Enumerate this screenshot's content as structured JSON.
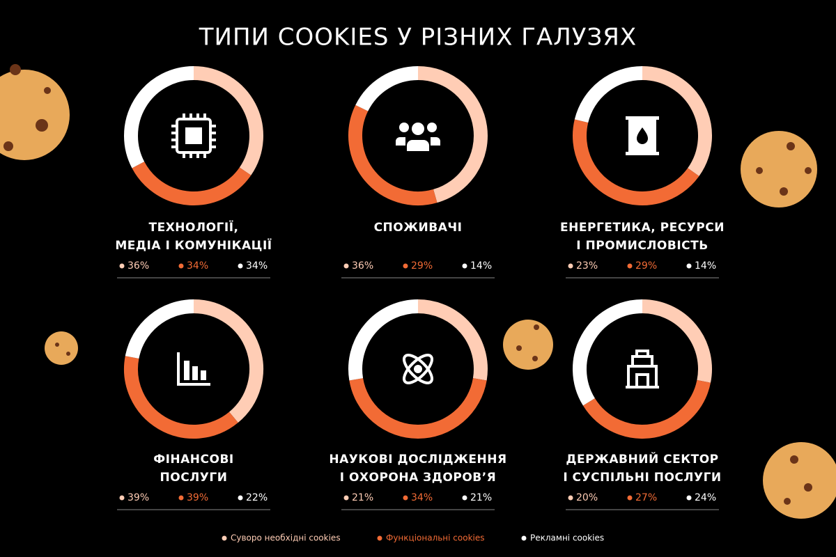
{
  "title": "ТИПИ COOKIES У РІЗНИХ ГАЛУЗЯХ",
  "legend": {
    "names": [
      "Суворо необхідні cookies",
      "Функціональні cookies",
      "Рекламні cookies"
    ],
    "colors": [
      "#ffcdb5",
      "#f26b35",
      "#ffffff"
    ]
  },
  "chart_data": [
    {
      "type": "donut",
      "title_lines": [
        "ТЕХНОЛОГІЇ,",
        "МЕДІА І КОМУНІКАЦІЇ"
      ],
      "values": [
        36,
        34,
        34
      ],
      "value_labels": [
        "36%",
        "34%",
        "34%"
      ]
    },
    {
      "type": "donut",
      "title_lines": [
        "СПОЖИВАЧІ"
      ],
      "values": [
        36,
        29,
        14
      ],
      "value_labels": [
        "36%",
        "29%",
        "14%"
      ]
    },
    {
      "type": "donut",
      "title_lines": [
        "ЕНЕРГЕТИКА, РЕСУРСИ",
        "І ПРОМИСЛОВІСТЬ"
      ],
      "values": [
        23,
        29,
        14
      ],
      "value_labels": [
        "23%",
        "29%",
        "14%"
      ]
    },
    {
      "type": "donut",
      "title_lines": [
        "ФІНАНСОВІ",
        "ПОСЛУГИ"
      ],
      "values": [
        39,
        39,
        22
      ],
      "value_labels": [
        "39%",
        "39%",
        "22%"
      ]
    },
    {
      "type": "donut",
      "title_lines": [
        "НАУКОВІ ДОСЛІДЖЕННЯ",
        "І ОХОРОНА ЗДОРОВ’Я"
      ],
      "values": [
        21,
        34,
        21
      ],
      "value_labels": [
        "21%",
        "34%",
        "21%"
      ]
    },
    {
      "type": "donut",
      "title_lines": [
        "ДЕРЖАВНИЙ СЕКТОР",
        "І СУСПІЛЬНІ ПОСЛУГИ"
      ],
      "values": [
        20,
        27,
        24
      ],
      "value_labels": [
        "20%",
        "27%",
        "24%"
      ]
    }
  ]
}
